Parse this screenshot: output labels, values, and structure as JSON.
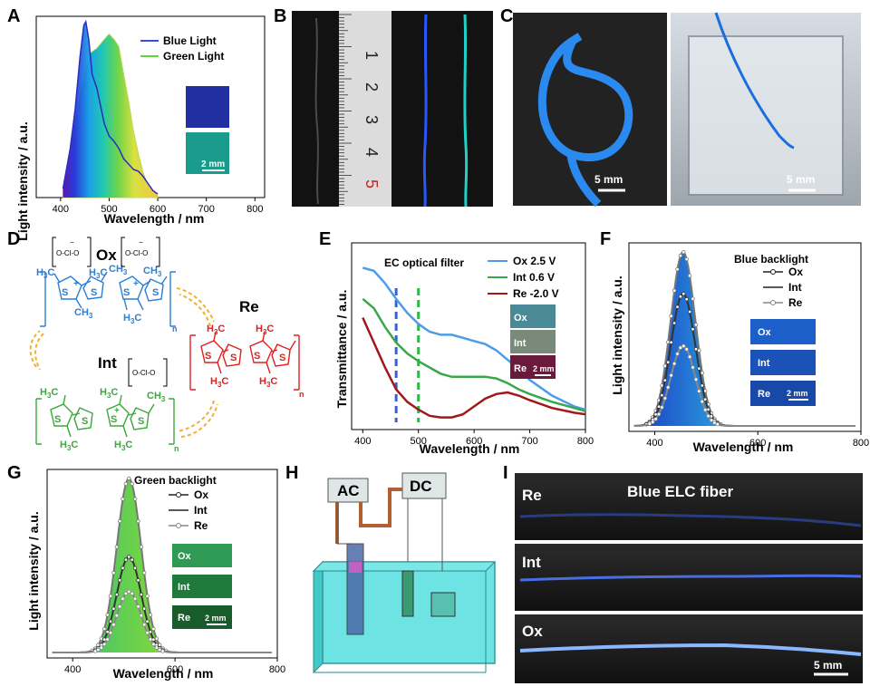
{
  "panel_letters": {
    "A": "A",
    "B": "B",
    "C": "C",
    "D": "D",
    "E": "E",
    "F": "F",
    "G": "G",
    "H": "H",
    "I": "I"
  },
  "panelA": {
    "ylabel": "Light intensity / a.u.",
    "xlabel": "Wavelength / nm",
    "legend": [
      "Blue Light",
      "Green Light"
    ],
    "scale": "2 mm"
  },
  "panelB": {
    "ruler_ticks": [
      "1",
      "2",
      "3",
      "4",
      "5"
    ]
  },
  "panelC": {
    "scale_left": "5 mm",
    "scale_right": "5 mm"
  },
  "panelD": {
    "labels": {
      "ox": "Ox",
      "re": "Re",
      "int": "Int"
    },
    "methyl": "CH",
    "methyl_sub": "3",
    "h3c": "H",
    "h3c_sub": "3",
    "h3c_end": "C",
    "sulfur": "S",
    "perchlorate": "O-Cl-O",
    "subscript_n": "n",
    "plus": "+",
    "minus": "−"
  },
  "panelE": {
    "title": "EC optical filter",
    "ylabel": "Transmittance / a.u.",
    "xlabel": "Wavelength / nm",
    "legend": [
      "Ox 2.5 V",
      "Int 0.6 V",
      "Re -2.0 V"
    ],
    "swatches": [
      "Ox",
      "Int",
      "Re"
    ],
    "scale": "2 mm"
  },
  "panelF": {
    "title": "Blue backlight",
    "ylabel": "Light intensity / a.u.",
    "xlabel": "Wavelength / nm",
    "legend": [
      "Ox",
      "Int",
      "Re"
    ],
    "swatches": [
      "Ox",
      "Int",
      "Re"
    ],
    "scale": "2 mm"
  },
  "panelG": {
    "title": "Green backlight",
    "ylabel": "Light intensity / a.u.",
    "xlabel": "Wavelength / nm",
    "legend": [
      "Ox",
      "Int",
      "Re"
    ],
    "swatches": [
      "Ox",
      "Int",
      "Re"
    ],
    "scale": "2 mm"
  },
  "panelH": {
    "ac": "AC",
    "dc": "DC"
  },
  "panelI": {
    "title": "Blue ELC fiber",
    "rows": [
      "Re",
      "Int",
      "Ox"
    ],
    "scale": "5 mm"
  },
  "colors": {
    "blue": "#3b5fd6",
    "green": "#4ec64e",
    "lightblue": "#4d9bea",
    "ecgreen": "#39a84a",
    "darkred": "#a01818"
  },
  "chart_data": [
    {
      "type": "area",
      "title": "",
      "xlabel": "Wavelength / nm",
      "ylabel": "Light intensity / a.u.",
      "xlim": [
        350,
        820
      ],
      "xticks": [
        400,
        500,
        600,
        700,
        800
      ],
      "series": [
        {
          "name": "Blue Light",
          "x": [
            405,
            420,
            430,
            440,
            448,
            452,
            458,
            465,
            475,
            490,
            500,
            510,
            520,
            530,
            540,
            550,
            560,
            570,
            580,
            590,
            600
          ],
          "y": [
            0.05,
            0.28,
            0.5,
            0.8,
            0.98,
            1.0,
            0.9,
            0.7,
            0.62,
            0.42,
            0.35,
            0.32,
            0.28,
            0.22,
            0.19,
            0.16,
            0.15,
            0.12,
            0.08,
            0.04,
            0.02
          ]
        },
        {
          "name": "Green Light",
          "x": [
            405,
            420,
            440,
            460,
            475,
            490,
            500,
            510,
            520,
            530,
            540,
            550,
            560,
            570,
            580,
            590,
            600
          ],
          "y": [
            0.05,
            0.25,
            0.6,
            0.82,
            0.85,
            0.9,
            0.93,
            0.9,
            0.86,
            0.7,
            0.55,
            0.38,
            0.25,
            0.14,
            0.07,
            0.03,
            0.01
          ]
        }
      ]
    },
    {
      "type": "line",
      "title": "EC optical filter",
      "xlabel": "Wavelength / nm",
      "ylabel": "Transmittance / a.u.",
      "xlim": [
        380,
        800
      ],
      "xticks": [
        400,
        500,
        600,
        700,
        800
      ],
      "series": [
        {
          "name": "Ox 2.5 V",
          "x": [
            400,
            420,
            440,
            460,
            480,
            500,
            520,
            540,
            560,
            580,
            600,
            620,
            640,
            660,
            680,
            700,
            740,
            780,
            800
          ],
          "y": [
            0.98,
            0.96,
            0.88,
            0.78,
            0.69,
            0.62,
            0.57,
            0.55,
            0.55,
            0.53,
            0.51,
            0.49,
            0.45,
            0.39,
            0.33,
            0.26,
            0.16,
            0.09,
            0.07
          ]
        },
        {
          "name": "Int 0.6 V",
          "x": [
            400,
            420,
            440,
            460,
            480,
            500,
            520,
            540,
            560,
            580,
            600,
            620,
            640,
            660,
            680,
            700,
            740,
            780,
            800
          ],
          "y": [
            0.78,
            0.72,
            0.6,
            0.5,
            0.43,
            0.38,
            0.34,
            0.3,
            0.28,
            0.28,
            0.28,
            0.28,
            0.27,
            0.24,
            0.2,
            0.17,
            0.12,
            0.08,
            0.06
          ]
        },
        {
          "name": "Re -2.0 V",
          "x": [
            400,
            420,
            440,
            460,
            480,
            500,
            520,
            540,
            560,
            580,
            600,
            620,
            640,
            660,
            680,
            700,
            740,
            780,
            800
          ],
          "y": [
            0.66,
            0.5,
            0.34,
            0.2,
            0.12,
            0.07,
            0.03,
            0.02,
            0.02,
            0.04,
            0.09,
            0.14,
            0.17,
            0.18,
            0.16,
            0.13,
            0.08,
            0.05,
            0.04
          ]
        }
      ]
    },
    {
      "type": "line",
      "title": "Blue backlight",
      "xlabel": "Wavelength / nm",
      "ylabel": "Light intensity / a.u.",
      "xlim": [
        350,
        800
      ],
      "xticks": [
        400,
        600,
        800
      ],
      "series": [
        {
          "name": "Ox",
          "peak_nm": 455,
          "peak": 1.0
        },
        {
          "name": "Int",
          "peak_nm": 455,
          "peak": 0.76
        },
        {
          "name": "Re",
          "peak_nm": 455,
          "peak": 0.46
        }
      ]
    },
    {
      "type": "line",
      "title": "Green backlight",
      "xlabel": "Wavelength / nm",
      "ylabel": "Light intensity / a.u.",
      "xlim": [
        350,
        800
      ],
      "xticks": [
        400,
        600,
        800
      ],
      "series": [
        {
          "name": "Ox",
          "peak_nm": 510,
          "peak": 1.0
        },
        {
          "name": "Int",
          "peak_nm": 510,
          "peak": 0.55
        },
        {
          "name": "Re",
          "peak_nm": 510,
          "peak": 0.35
        }
      ]
    }
  ]
}
